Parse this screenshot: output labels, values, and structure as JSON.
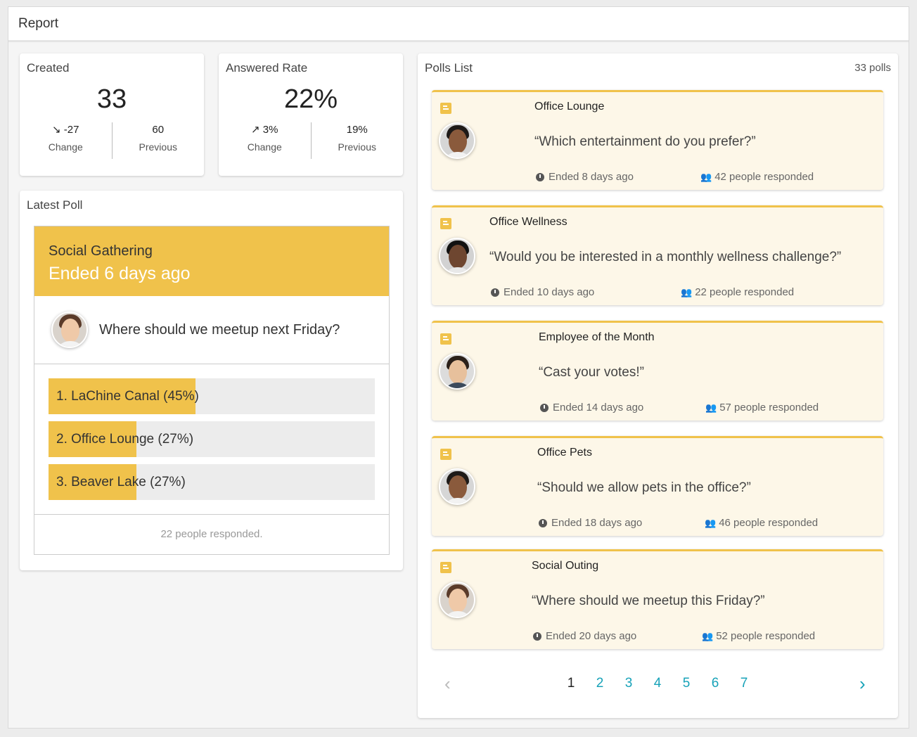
{
  "header": {
    "title": "Report"
  },
  "created": {
    "title": "Created",
    "value": "33",
    "change_value": "↘ -27",
    "change_label": "Change",
    "previous_value": "60",
    "previous_label": "Previous"
  },
  "answered": {
    "title": "Answered Rate",
    "value": "22%",
    "change_value": "↗ 3%",
    "change_label": "Change",
    "previous_value": "19%",
    "previous_label": "Previous"
  },
  "latest": {
    "title": "Latest Poll",
    "poll_name": "Social Gathering",
    "status": "Ended 6 days ago",
    "question": "Where should we meetup next Friday?",
    "options": [
      {
        "label": "1. LaChine Canal (45%)",
        "percent": 45
      },
      {
        "label": "2. Office Lounge (27%)",
        "percent": 27
      },
      {
        "label": "3. Beaver Lake (27%)",
        "percent": 27
      }
    ],
    "footer": "22 people responded."
  },
  "polls": {
    "title": "Polls List",
    "count": "33 polls",
    "items": [
      {
        "title": "Office Lounge",
        "question": "“Which entertainment do you prefer?”",
        "ended": "Ended 8 days ago",
        "responded": "42 people responded"
      },
      {
        "title": "Office Wellness",
        "question": "“Would you be interested in a monthly wellness challenge?”",
        "ended": "Ended 10 days ago",
        "responded": "22 people responded"
      },
      {
        "title": "Employee of the Month",
        "question": "“Cast your votes!”",
        "ended": "Ended 14 days ago",
        "responded": "57 people responded"
      },
      {
        "title": "Office Pets",
        "question": "“Should we allow pets in the office?”",
        "ended": "Ended 18 days ago",
        "responded": "46 people responded"
      },
      {
        "title": "Social Outing",
        "question": "“Where should we meetup this Friday?”",
        "ended": "Ended 20 days ago",
        "responded": "52 people responded"
      }
    ]
  },
  "pagination": {
    "prev": "‹",
    "next": "›",
    "pages": [
      "1",
      "2",
      "3",
      "4",
      "5",
      "6",
      "7"
    ],
    "current": "1"
  },
  "colors": {
    "accent": "#f0c24b",
    "poll_bg": "#fdf7e8",
    "link": "#17a2b8",
    "down": "#c0392b",
    "up": "#3e9a3e"
  }
}
